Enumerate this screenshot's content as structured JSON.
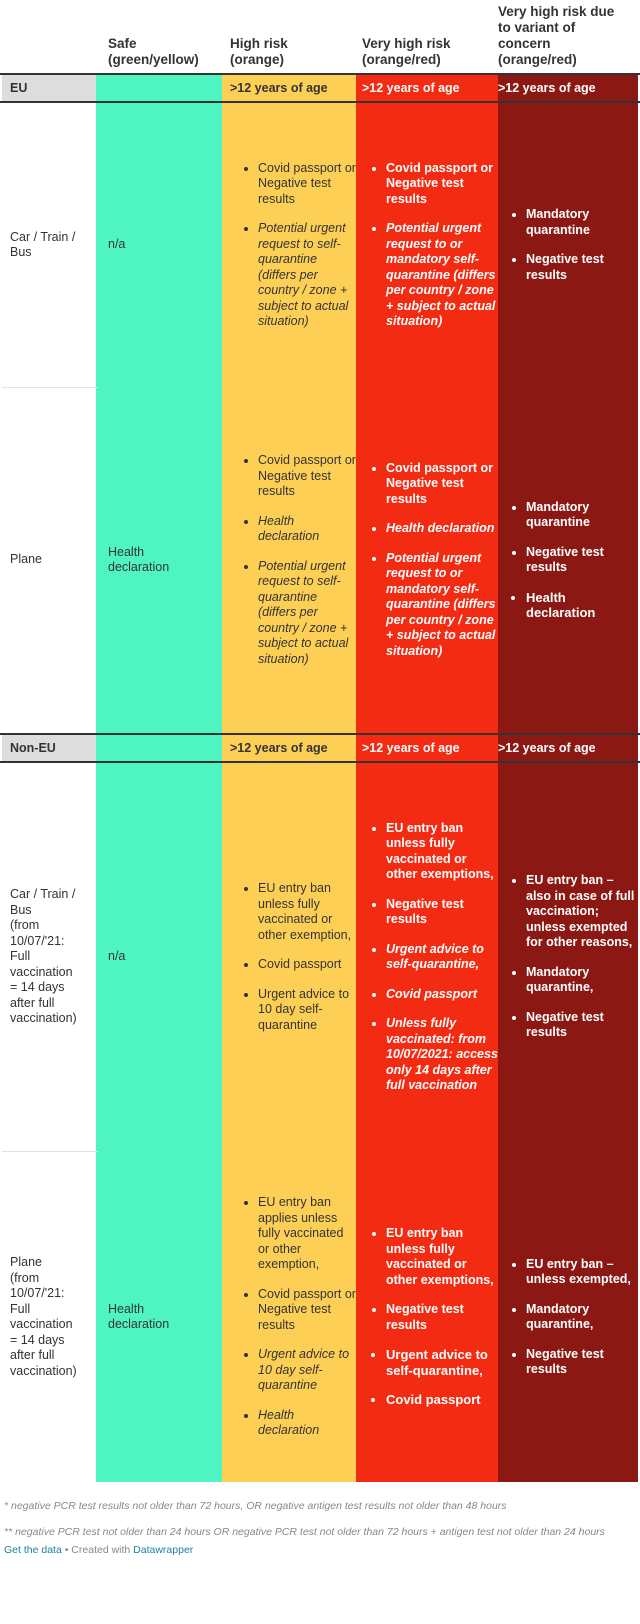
{
  "colors": {
    "safe": "#4ff5c0",
    "high": "#fdd055",
    "very_high": "#f42b13",
    "variant": "#8b1812",
    "band_label": "#dddddd"
  },
  "headers": {
    "safe": [
      "Safe",
      "(green/yellow)"
    ],
    "high": [
      "High risk",
      "(orange)"
    ],
    "very_high": [
      "Very high risk",
      "(orange/red)"
    ],
    "variant": [
      "Very high risk due",
      "to variant of",
      "concern",
      "(orange/red)"
    ]
  },
  "sections": [
    {
      "label": "EU",
      "bands": {
        "high": ">12 years of age",
        "very_high": ">12 years of age",
        "variant": ">12 years of age"
      },
      "rows": [
        {
          "label": [
            "Car / Train /",
            "Bus"
          ],
          "safe": [
            "n/a"
          ],
          "high": [
            {
              "text": "Covid passport or Negative test results",
              "style": ""
            },
            {
              "text": "Potential urgent request to self-quarantine (differs per country / zone + subject to actual situation)",
              "style": "it"
            }
          ],
          "very_high": [
            {
              "text": "Covid passport or Negative test results",
              "style": "bd"
            },
            {
              "text": "Potential urgent request to or mandatory self-quarantine (differs per country / zone + subject to actual situation)",
              "style": "bd it"
            }
          ],
          "variant": [
            {
              "text": "Mandatory quarantine",
              "style": "bd"
            },
            {
              "text": "Negative test results",
              "style": "bd"
            }
          ]
        },
        {
          "label": [
            "Plane"
          ],
          "safe": [
            "Health",
            "declaration"
          ],
          "high": [
            {
              "text": "Covid passport or Negative test results",
              "style": ""
            },
            {
              "text": "Health declaration",
              "style": "it"
            },
            {
              "text": "Potential urgent request to self-quarantine (differs per country / zone + subject to actual situation)",
              "style": "it"
            }
          ],
          "very_high": [
            {
              "text": "Covid passport or Negative test results",
              "style": "bd"
            },
            {
              "text": "Health declaration",
              "style": "bd it"
            },
            {
              "text": "Potential urgent request to or mandatory self-quarantine (differs per country / zone + subject to actual situation)",
              "style": "bd it"
            }
          ],
          "variant": [
            {
              "text": "Mandatory quarantine",
              "style": "bd"
            },
            {
              "text": "Negative test results",
              "style": "bd"
            },
            {
              "text": "Health declaration",
              "style": "bd xb"
            }
          ]
        }
      ]
    },
    {
      "label": "Non-EU",
      "bands": {
        "high": ">12 years of age",
        "very_high": ">12 years of age",
        "variant": ">12 years of age"
      },
      "rows": [
        {
          "label": [
            "Car / Train /",
            "Bus",
            "(from",
            "10/07/'21:",
            "Full",
            "vaccination",
            "= 14 days",
            "after full",
            "vaccination)"
          ],
          "safe": [
            "n/a"
          ],
          "high": [
            {
              "text": "EU entry ban unless fully vaccinated or other exemption,",
              "style": ""
            },
            {
              "text": "Covid passport",
              "style": ""
            },
            {
              "text": "Urgent advice to 10 day self-quarantine",
              "style": ""
            }
          ],
          "very_high": [
            {
              "text": "EU entry ban unless fully vaccinated or other exemptions,",
              "style": "bd"
            },
            {
              "text": "Negative test results",
              "style": "bd"
            },
            {
              "text": "Urgent advice to self-quarantine,",
              "style": "bd it"
            },
            {
              "text": "Covid passport",
              "style": "bd it"
            },
            {
              "text": "Unless fully vaccinated: from 10/07/2021: access only 14 days after full vaccination",
              "style": "bd it"
            }
          ],
          "variant": [
            {
              "text": "EU entry ban – also in case of full vaccination; unless exempted for other reasons,",
              "style": "bd"
            },
            {
              "text": "Mandatory quarantine,",
              "style": "bd"
            },
            {
              "text": "Negative test results",
              "style": "bd"
            }
          ]
        },
        {
          "label": [
            "Plane",
            "(from",
            "10/07/'21:",
            "Full",
            "vaccination",
            "= 14 days",
            "after full",
            "vaccination)"
          ],
          "safe": [
            "Health",
            "declaration"
          ],
          "high": [
            {
              "text": "EU entry ban applies unless fully vaccinated or other exemption,",
              "style": ""
            },
            {
              "text": "Covid passport or Negative test results",
              "style": ""
            },
            {
              "text": "Urgent advice to 10 day self-quarantine",
              "style": "it"
            },
            {
              "text": "Health declaration",
              "style": "it"
            }
          ],
          "very_high": [
            {
              "text": "EU entry ban unless fully vaccinated or other exemptions,",
              "style": "bd"
            },
            {
              "text": "Negative test results",
              "style": "bd"
            },
            {
              "text": "Urgent advice to self-quarantine,",
              "style": "bd xb"
            },
            {
              "text": "Covid passport",
              "style": "bd xb"
            }
          ],
          "variant": [
            {
              "text": "EU entry ban – unless exempted,",
              "style": "bd"
            },
            {
              "text": "Mandatory quarantine,",
              "style": "bd"
            },
            {
              "text": "Negative test results",
              "style": "bd"
            }
          ]
        }
      ]
    }
  ],
  "notes": [
    "* negative PCR test results not older than 72 hours, OR negative antigen test results not older than 48 hours",
    "** negative PCR test not older than 24 hours OR negative PCR test not older than 72 hours + antigen test not older than 24 hours"
  ],
  "credit": {
    "get_data": "Get the data",
    "sep": " • Created with ",
    "tool": "Datawrapper"
  }
}
